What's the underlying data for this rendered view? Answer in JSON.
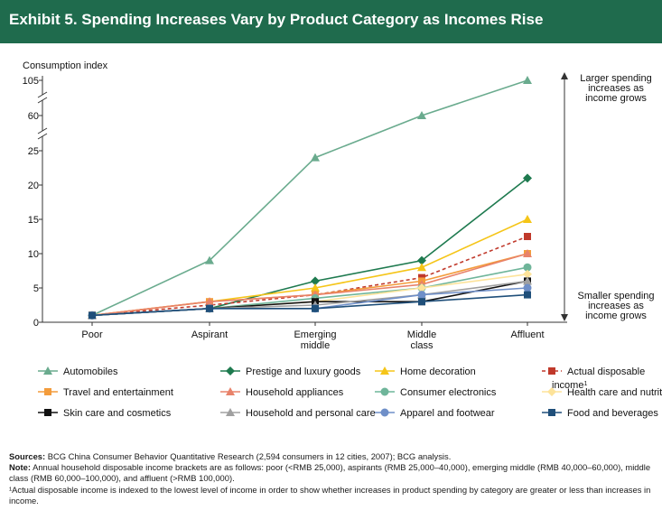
{
  "header": {
    "title": "Exhibit 5. Spending Increases Vary by Product Category as Incomes Rise"
  },
  "colors": {
    "header_bg": "#1f6b4d",
    "axis": "#333333"
  },
  "chart_data": {
    "type": "line",
    "ylabel": "Consumption index",
    "categories": [
      "Poor",
      "Aspirant",
      "Emerging middle",
      "Middle class",
      "Affluent"
    ],
    "y_ticks": [
      0,
      5,
      10,
      15,
      20,
      25,
      60,
      105
    ],
    "ylim": [
      0,
      105
    ],
    "axis_break": "between 25 and 60 and between 60 and 105",
    "annotations": {
      "top": "Larger spending increases as income grows",
      "bottom": "Smaller spending increases as income grows"
    },
    "legend_position": "bottom",
    "series": [
      {
        "name": "Automobiles",
        "marker": "triangle",
        "color": "#6aab8e",
        "dashed": false,
        "values": [
          1,
          9,
          24,
          60,
          105
        ]
      },
      {
        "name": "Prestige and luxury goods",
        "marker": "diamond",
        "color": "#1e7a4f",
        "dashed": false,
        "values": [
          1,
          2,
          6,
          9,
          21
        ]
      },
      {
        "name": "Home decoration",
        "marker": "triangle",
        "color": "#f5c518",
        "dashed": false,
        "values": [
          1,
          3,
          5,
          8,
          15
        ]
      },
      {
        "name": "Actual disposable income",
        "footnote_mark": "1",
        "marker": "square",
        "color": "#c0392b",
        "dashed": true,
        "values": [
          1,
          2.5,
          4,
          6.5,
          12.5
        ]
      },
      {
        "name": "Travel and entertainment",
        "marker": "square",
        "color": "#f39c3c",
        "dashed": false,
        "values": [
          1,
          3,
          4,
          6,
          10
        ]
      },
      {
        "name": "Household appliances",
        "marker": "triangle",
        "color": "#e8826a",
        "dashed": false,
        "values": [
          1,
          3,
          4,
          5.5,
          10
        ]
      },
      {
        "name": "Consumer electronics",
        "marker": "circle",
        "color": "#6fb59a",
        "dashed": false,
        "values": [
          1,
          2,
          3.5,
          5,
          8
        ]
      },
      {
        "name": "Health care and nutrition",
        "marker": "diamond",
        "color": "#fde39a",
        "dashed": false,
        "values": [
          1,
          2,
          3,
          5,
          7
        ]
      },
      {
        "name": "Skin care and cosmetics",
        "marker": "square",
        "color": "#111111",
        "dashed": false,
        "values": [
          1,
          2,
          3,
          3,
          6
        ]
      },
      {
        "name": "Household and personal care",
        "marker": "triangle",
        "color": "#a0a0a0",
        "dashed": false,
        "values": [
          1,
          2,
          2.5,
          4,
          6
        ]
      },
      {
        "name": "Apparel and footwear",
        "marker": "circle",
        "color": "#6f8fc8",
        "dashed": false,
        "values": [
          1,
          2,
          2,
          4,
          5
        ]
      },
      {
        "name": "Food and beverages",
        "marker": "square",
        "color": "#1f4f7a",
        "dashed": false,
        "values": [
          1,
          2,
          2,
          3,
          4
        ]
      }
    ]
  },
  "footnotes": {
    "sources_label": "Sources:",
    "sources_text": "BCG China Consumer Behavior Quantitative Research (2,594 consumers in 12 cities, 2007); BCG analysis.",
    "note_label": "Note:",
    "note_text": "Annual household disposable income brackets are as follows: poor (<RMB 25,000), aspirants (RMB 25,000–40,000), emerging middle (RMB 40,000–60,000), middle class (RMB 60,000–100,000), and affluent (>RMB 100,000).",
    "footnote_1": "¹Actual disposable income is indexed to the lowest level of income in order to show whether increases in product spending by category are greater or less than increases in income."
  }
}
